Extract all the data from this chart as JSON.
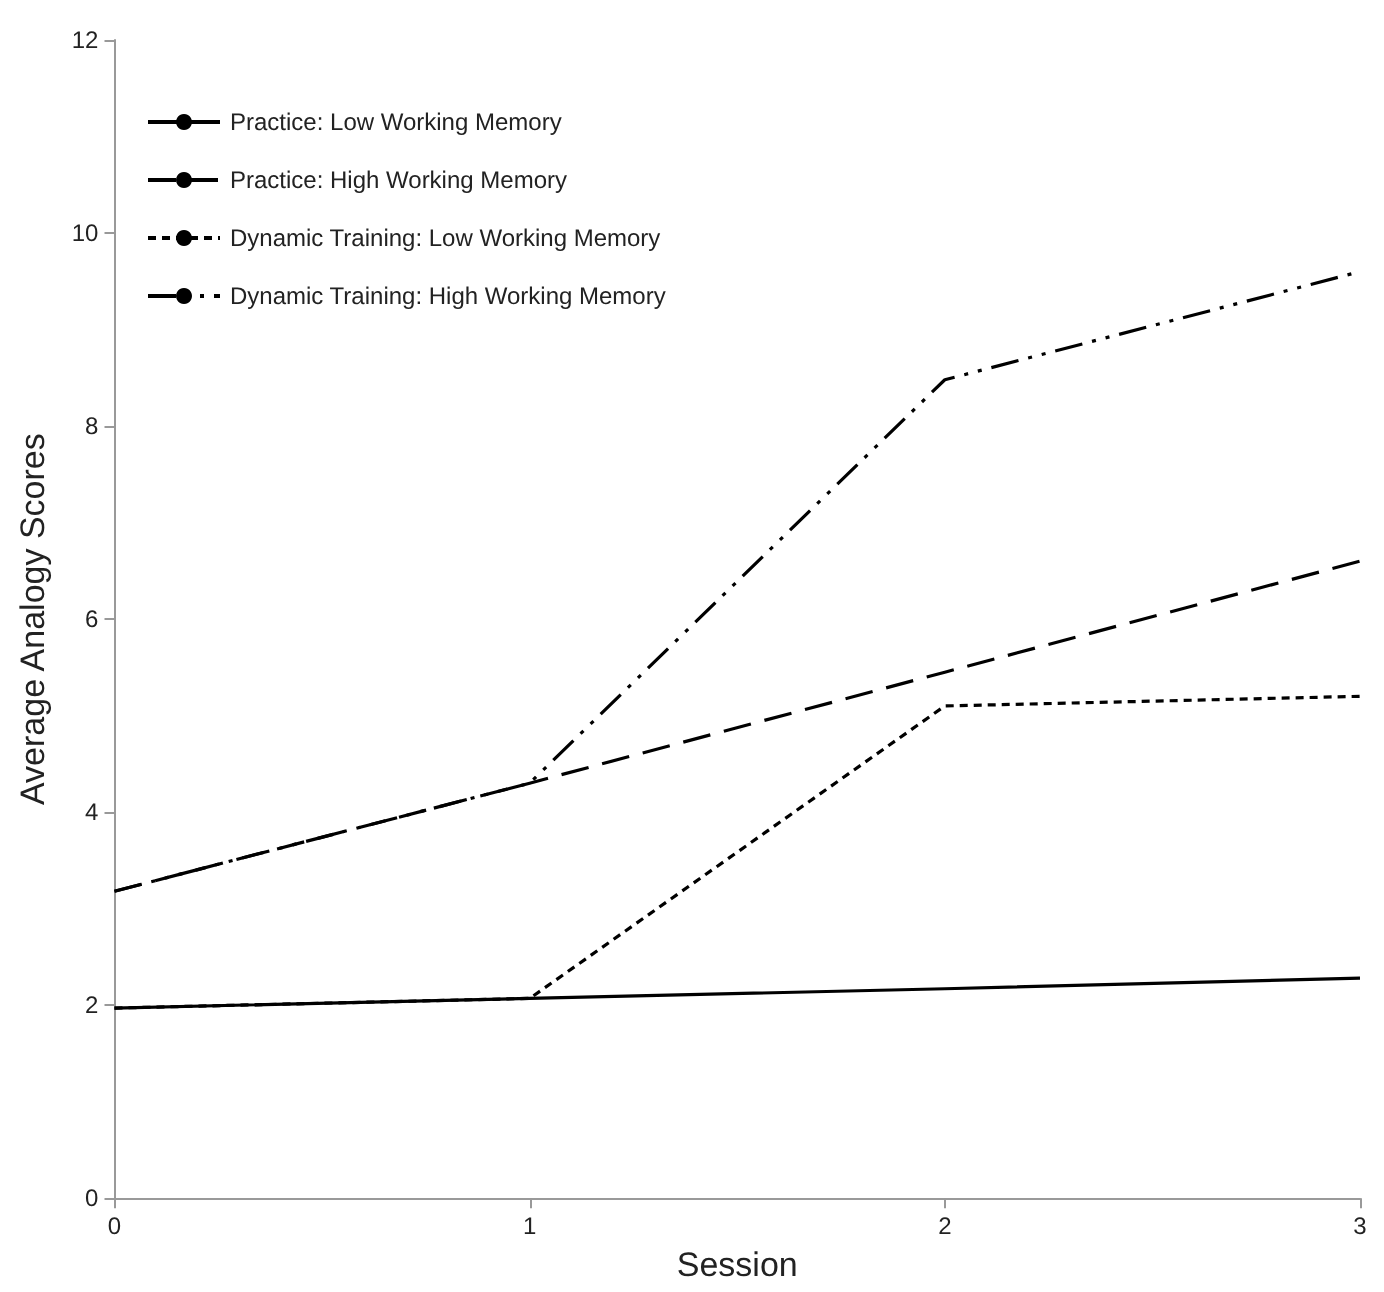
{
  "chart_data": {
    "type": "line",
    "xlabel": "Session",
    "ylabel": "Average Analogy Scores",
    "x": [
      0,
      1,
      2,
      3
    ],
    "xlim": [
      0,
      3
    ],
    "xticks": [
      0,
      1,
      2,
      3
    ],
    "ylim": [
      0,
      12
    ],
    "yticks": [
      0,
      2,
      4,
      6,
      8,
      10,
      12
    ],
    "grid": false,
    "legend": "top left",
    "marker": "none",
    "series": [
      {
        "name": "Practice: Low Working Memory",
        "color": "#000000",
        "line_style": "solid",
        "values": [
          1.97,
          2.07,
          2.17,
          2.28
        ]
      },
      {
        "name": "Practice: High Working Memory",
        "color": "#000000",
        "line_style": "dashed",
        "values": [
          3.18,
          4.3,
          5.45,
          6.6
        ]
      },
      {
        "name": "Dynamic Training: Low Working Memory",
        "color": "#000000",
        "line_style": "dotted",
        "values": [
          1.97,
          2.07,
          5.1,
          5.2
        ]
      },
      {
        "name": "Dynamic Training: High Working Memory",
        "color": "#000000",
        "line_style": "dashdotdot",
        "values": [
          3.18,
          4.3,
          8.48,
          9.6
        ]
      }
    ]
  }
}
